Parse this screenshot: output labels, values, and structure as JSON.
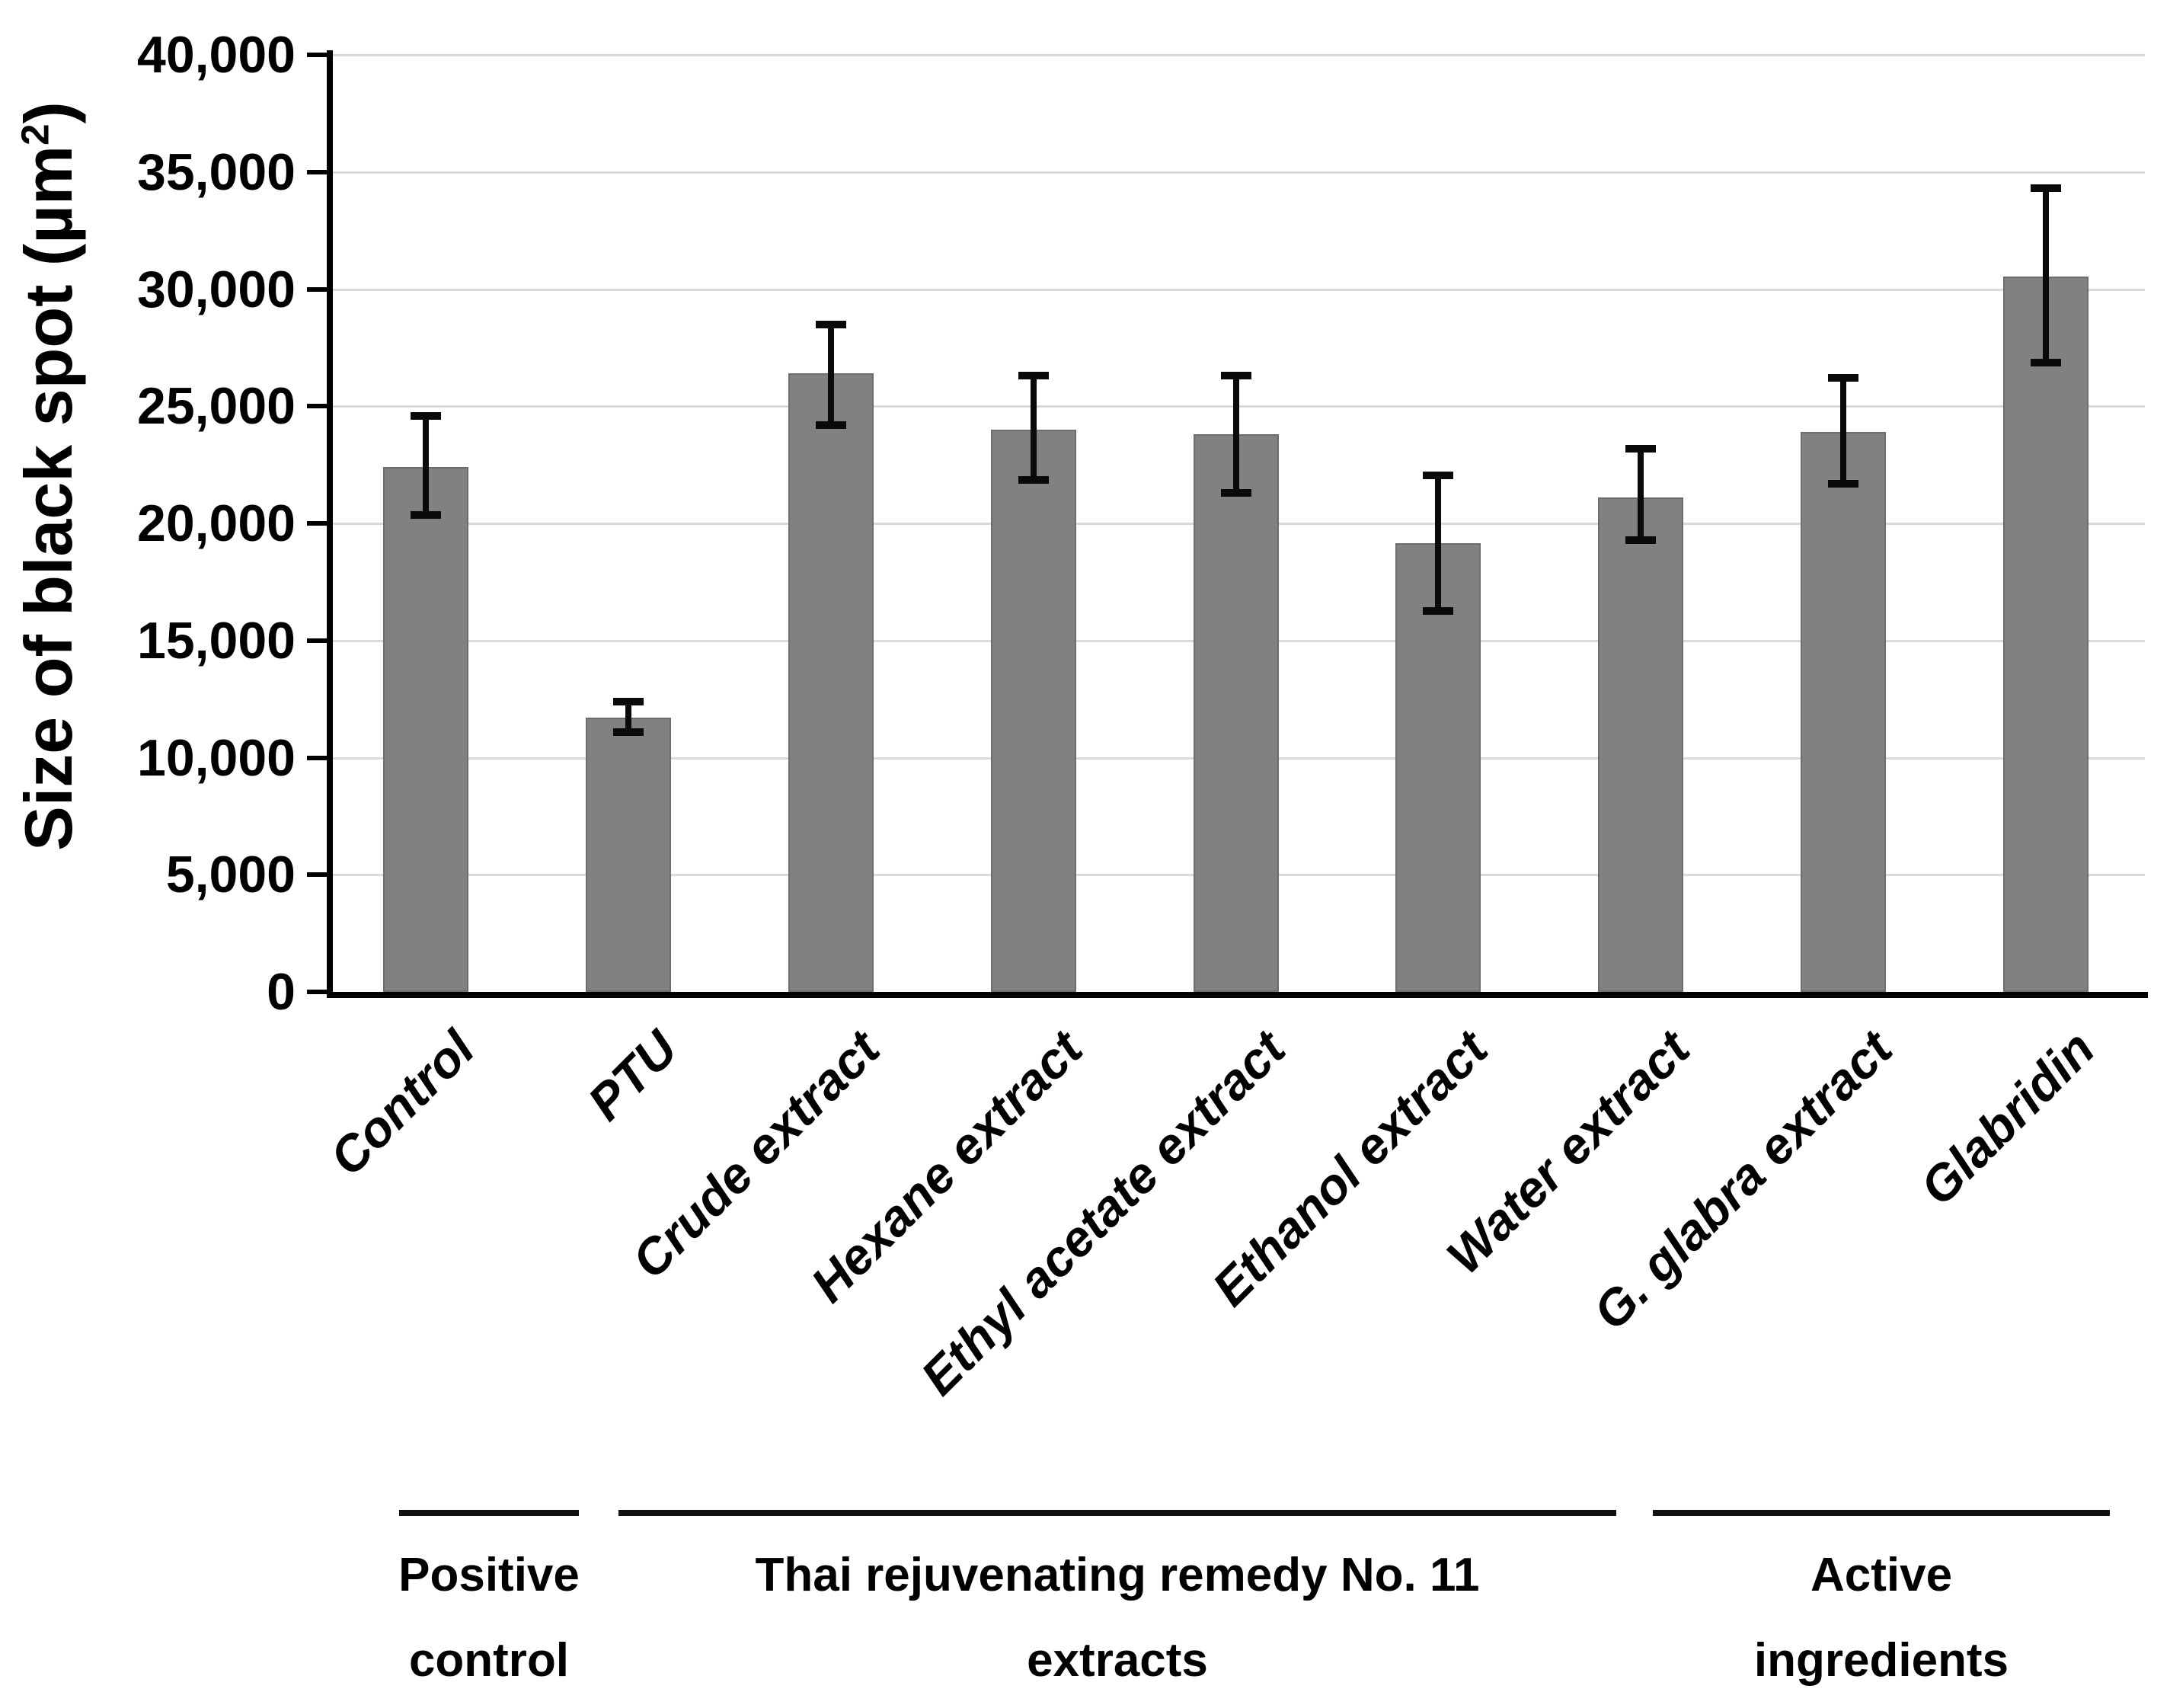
{
  "chart_data": {
    "type": "bar",
    "title": "",
    "ylabel_pre": "Size of black spot (µm",
    "ylabel_sup": "2",
    "ylabel_post": ")",
    "ylim": [
      0,
      40000
    ],
    "ytick_step": 5000,
    "ytick_labels": [
      "0",
      "5,000",
      "10,000",
      "15,000",
      "20,000",
      "25,000",
      "30,000",
      "35,000",
      "40,000"
    ],
    "grid": true,
    "legend": "none",
    "bar_color": "#818181",
    "error_bar_color": "#0a0a0a",
    "categories": [
      "Control",
      "PTU",
      "Crude extract",
      "Hexane extract",
      "Ethyl acetate extract",
      "Ethanol extract",
      "Water extract",
      "G. glabra extract",
      "Glabridin"
    ],
    "values": [
      22400,
      11700,
      26400,
      24000,
      23800,
      19150,
      21100,
      23900,
      30550
    ],
    "errors_up": [
      2200,
      700,
      2100,
      2300,
      2500,
      2900,
      2100,
      2300,
      3750
    ],
    "errors_down": [
      2050,
      600,
      2200,
      2150,
      2500,
      2900,
      1800,
      2200,
      3700
    ],
    "groups": [
      {
        "line1": "Positive",
        "line2": "control"
      },
      {
        "line1": "Thai rejuvenating remedy No. 11",
        "line2": "extracts"
      },
      {
        "line1": "Active",
        "line2": "ingredients"
      }
    ]
  }
}
